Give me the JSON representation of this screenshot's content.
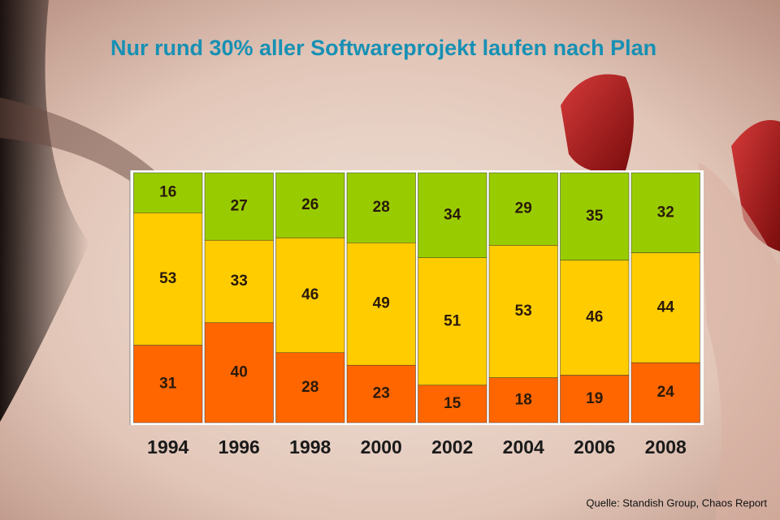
{
  "chart_data": {
    "type": "stacked_bar",
    "title": "Nur rund 30% aller Softwareprojekt laufen nach Plan",
    "source": "Quelle: Standish Group, Chaos Report",
    "categories": [
      "1994",
      "1996",
      "1998",
      "2000",
      "2002",
      "2004",
      "2006",
      "2008"
    ],
    "series": [
      {
        "color": "#ff6600",
        "values": [
          31,
          40,
          28,
          23,
          15,
          18,
          19,
          24
        ]
      },
      {
        "color": "#ffcc00",
        "values": [
          53,
          33,
          46,
          49,
          51,
          53,
          46,
          44
        ]
      },
      {
        "color": "#99cc00",
        "values": [
          16,
          27,
          26,
          28,
          34,
          29,
          35,
          32
        ]
      }
    ],
    "ylim": [
      0,
      100
    ]
  }
}
